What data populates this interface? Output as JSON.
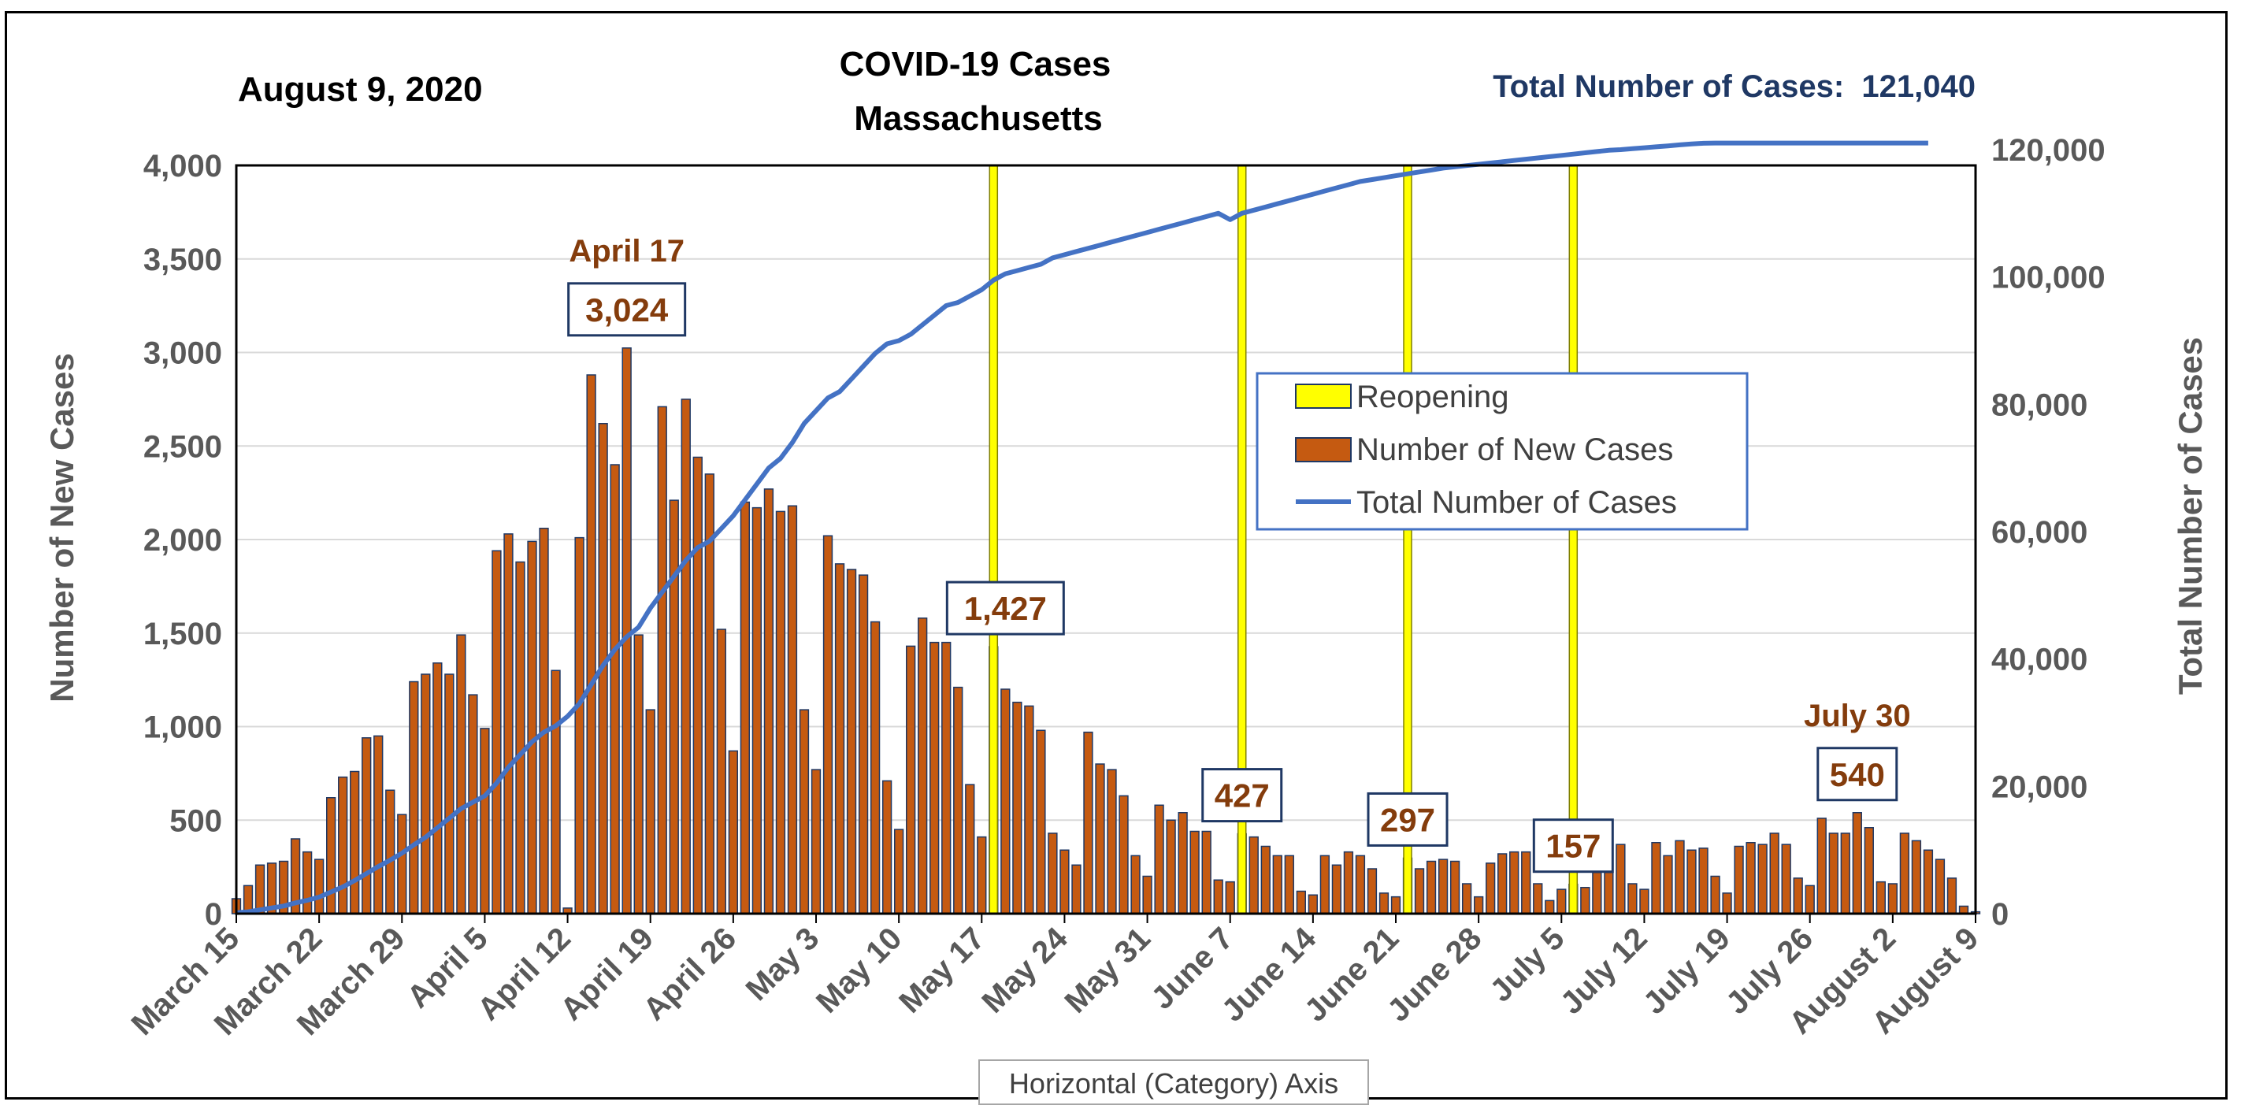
{
  "chart_data": {
    "type": "bar",
    "date_label": "August 9, 2020",
    "title": "COVID-19 Cases",
    "subtitle": "Massachusetts",
    "total_label": "Total Number of Cases:  121,040",
    "ylabel_left": "Number of New Cases",
    "ylabel_right": "Total Number of Cases",
    "xaxis_tooltip": "Horizontal (Category) Axis",
    "ylim_left": [
      0,
      4000
    ],
    "ylim_right": [
      0,
      120000
    ],
    "yticks_left": [
      "0",
      "500",
      "1,000",
      "1,500",
      "2,000",
      "2,500",
      "3,000",
      "3,500",
      "4,000"
    ],
    "yticks_right": [
      "0",
      "20,000",
      "40,000",
      "60,000",
      "80,000",
      "100,000",
      "120,000"
    ],
    "yticks_left_values": [
      0,
      500,
      1000,
      1500,
      2000,
      2500,
      3000,
      3500,
      4000
    ],
    "yticks_right_values": [
      0,
      20000,
      40000,
      60000,
      80000,
      100000,
      120000
    ],
    "xtick_labels": [
      "March 15",
      "March 22",
      "March 29",
      "April 5",
      "April 12",
      "April 19",
      "April 26",
      "May 3",
      "May 10",
      "May 17",
      "May 24",
      "May 31",
      "June 7",
      "June 14",
      "June 21",
      "June 28",
      "July 5",
      "July 12",
      "July 19",
      "July 26",
      "August 2",
      "August 9"
    ],
    "grid": true,
    "legend_position": "center-right",
    "legend": [
      {
        "label": "Reopening",
        "color": "#ffff00",
        "kind": "bar"
      },
      {
        "label": "Number of New Cases",
        "color": "#c55a11",
        "kind": "bar"
      },
      {
        "label": "Total Number of Cases",
        "color": "#4472c4",
        "kind": "line"
      }
    ],
    "colors": {
      "bar": "#c55a11",
      "bar_edge": "#1f3864",
      "line": "#4472c4",
      "reopening": "#ffff00",
      "annotation": "#843c0c",
      "total_label": "#1f3864"
    },
    "reopening_days": [
      64,
      85,
      99,
      113
    ],
    "annotations": [
      {
        "label": "April 17",
        "day": 33,
        "value": 3024,
        "kind": "heading"
      },
      {
        "label": "3,024",
        "day": 33,
        "value": 3024,
        "kind": "box"
      },
      {
        "label": "1,427",
        "day": 65,
        "value": 1427,
        "kind": "box"
      },
      {
        "label": "427",
        "day": 85,
        "value": 427,
        "kind": "box"
      },
      {
        "label": "297",
        "day": 99,
        "value": 297,
        "kind": "box"
      },
      {
        "label": "157",
        "day": 113,
        "value": 157,
        "kind": "box"
      },
      {
        "label": "July 30",
        "day": 137,
        "value": 540,
        "kind": "heading"
      },
      {
        "label": "540",
        "day": 137,
        "value": 540,
        "kind": "box"
      }
    ],
    "series": [
      {
        "name": "Number of New Cases",
        "kind": "bar",
        "values": [
          80,
          150,
          260,
          270,
          280,
          400,
          330,
          290,
          620,
          730,
          760,
          940,
          950,
          660,
          530,
          1240,
          1280,
          1340,
          1280,
          1490,
          1170,
          990,
          1940,
          2030,
          1880,
          1990,
          2060,
          1300,
          30,
          2010,
          2880,
          2620,
          2400,
          3024,
          1490,
          1090,
          2710,
          2210,
          2750,
          2440,
          2350,
          1520,
          870,
          2200,
          2170,
          2270,
          2150,
          2180,
          1090,
          770,
          2020,
          1870,
          1840,
          1810,
          1560,
          710,
          450,
          1430,
          1580,
          1450,
          1450,
          1210,
          690,
          410,
          1427,
          1200,
          1130,
          1110,
          980,
          430,
          340,
          260,
          970,
          800,
          770,
          630,
          310,
          200,
          580,
          500,
          540,
          440,
          440,
          180,
          170,
          427,
          410,
          360,
          310,
          310,
          120,
          100,
          310,
          260,
          330,
          310,
          240,
          110,
          90,
          297,
          240,
          280,
          290,
          280,
          160,
          90,
          270,
          320,
          330,
          330,
          160,
          70,
          130,
          157,
          140,
          220,
          220,
          370,
          160,
          130,
          380,
          310,
          390,
          340,
          350,
          200,
          110,
          360,
          380,
          370,
          430,
          370,
          190,
          150,
          510,
          430,
          430,
          540,
          460,
          170,
          160,
          430,
          390,
          340,
          290,
          190,
          40,
          10
        ]
      },
      {
        "name": "Total Number of Cases",
        "kind": "line",
        "values": [
          150,
          300,
          600,
          900,
          1200,
          1700,
          2100,
          2600,
          3400,
          4200,
          5200,
          6300,
          7400,
          8400,
          9500,
          10800,
          12000,
          13500,
          15000,
          16500,
          17500,
          18500,
          20500,
          23000,
          25000,
          27000,
          28500,
          29500,
          31000,
          33000,
          36000,
          39000,
          41500,
          43500,
          45000,
          48000,
          50500,
          53000,
          55500,
          57500,
          58500,
          60500,
          62500,
          65000,
          67500,
          70000,
          71500,
          74000,
          77000,
          79000,
          81000,
          82000,
          84000,
          86000,
          88000,
          89500,
          90000,
          91000,
          92500,
          94000,
          95500,
          96000,
          97000,
          98000,
          99500,
          100500,
          101000,
          101500,
          102000,
          103000,
          103500,
          104000,
          104500,
          105000,
          105500,
          106000,
          106500,
          107000,
          107500,
          108000,
          108500,
          109000,
          109500,
          110000,
          109000,
          110000,
          110500,
          111000,
          111500,
          112000,
          112500,
          113000,
          113500,
          114000,
          114500,
          115000,
          115300,
          115600,
          115900,
          116200,
          116500,
          116800,
          117100,
          117300,
          117500,
          117700,
          117900,
          118100,
          118300,
          118500,
          118700,
          118900,
          119100,
          119300,
          119500,
          119700,
          119900,
          120000,
          120150,
          120300,
          120450,
          120600,
          120750,
          120900,
          121000,
          121040,
          121040,
          121040,
          121040,
          121040,
          121040,
          121040,
          121040,
          121040,
          121040,
          121040,
          121040,
          121040,
          121040,
          121040,
          121040,
          121040,
          121040,
          121040
        ]
      }
    ]
  }
}
